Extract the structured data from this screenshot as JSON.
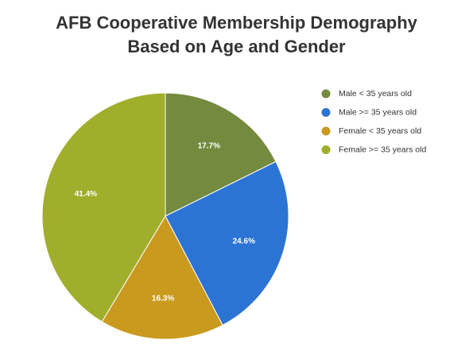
{
  "chart_data": {
    "type": "pie",
    "title_lines": [
      "AFB Cooperative Membership Demography",
      "Based on Age and Gender"
    ],
    "legend_position": "right",
    "slices": [
      {
        "label": "Male < 35 years old",
        "value": 17.7,
        "value_label": "17.7%",
        "color": "#748a3f"
      },
      {
        "label": "Male >= 35 years old",
        "value": 24.6,
        "value_label": "24.6%",
        "color": "#2c74d4"
      },
      {
        "label": "Female < 35 years old",
        "value": 16.3,
        "value_label": "16.3%",
        "color": "#c99a1e"
      },
      {
        "label": "Female >= 35 years old",
        "value": 41.4,
        "value_label": "41.4%",
        "color": "#a1ae2b"
      }
    ]
  }
}
